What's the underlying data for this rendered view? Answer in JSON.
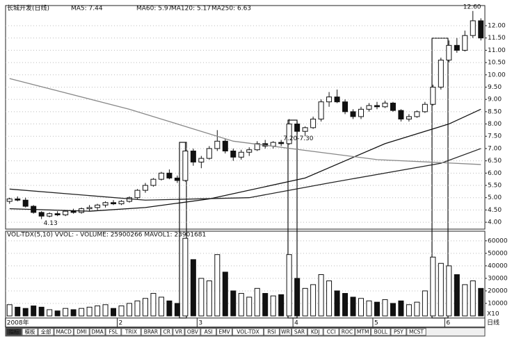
{
  "header": {
    "title": "长城开发(日线)",
    "ma_labels": [
      "MA5: 7.44",
      "MA60: 5.97",
      "MA120: 5.17",
      "MA250: 6.63"
    ]
  },
  "chart_data": [
    {
      "type": "candlestick",
      "categories": [
        "2008年",
        null,
        null,
        null,
        null,
        null,
        null,
        null,
        null,
        null,
        null,
        null,
        null,
        null,
        "2",
        null,
        null,
        null,
        null,
        null,
        null,
        null,
        null,
        null,
        "3",
        null,
        null,
        null,
        null,
        null,
        null,
        null,
        null,
        null,
        null,
        null,
        "4",
        null,
        null,
        null,
        null,
        null,
        null,
        null,
        null,
        null,
        "5",
        null,
        null,
        null,
        null,
        null,
        null,
        null,
        null,
        "6",
        null,
        null,
        null,
        null
      ],
      "open": [
        4.85,
        4.95,
        4.9,
        4.65,
        4.4,
        4.25,
        4.35,
        4.3,
        4.45,
        4.4,
        4.55,
        4.6,
        4.7,
        4.8,
        4.75,
        4.85,
        5.0,
        5.3,
        5.5,
        5.75,
        6.0,
        5.8,
        5.7,
        6.9,
        6.45,
        6.6,
        7.0,
        7.3,
        6.9,
        6.65,
        6.85,
        6.95,
        7.2,
        7.1,
        7.25,
        7.2,
        8.0,
        7.7,
        7.85,
        8.2,
        8.9,
        9.1,
        8.9,
        8.5,
        8.3,
        8.6,
        8.75,
        8.7,
        8.85,
        8.55,
        8.2,
        8.3,
        8.5,
        8.8,
        9.5,
        10.6,
        11.2,
        11.0,
        11.6,
        12.2
      ],
      "high": [
        5.0,
        5.05,
        5.0,
        4.7,
        4.45,
        4.4,
        4.45,
        4.5,
        4.55,
        4.6,
        4.7,
        4.75,
        4.85,
        4.9,
        4.9,
        5.05,
        5.35,
        5.6,
        5.8,
        6.05,
        6.15,
        5.9,
        7.25,
        7.0,
        6.7,
        7.1,
        7.75,
        7.4,
        7.0,
        6.95,
        7.05,
        7.3,
        7.35,
        7.3,
        7.35,
        8.2,
        8.1,
        7.9,
        8.3,
        9.0,
        9.3,
        9.4,
        9.0,
        8.6,
        8.7,
        8.85,
        8.9,
        8.95,
        8.9,
        8.6,
        8.4,
        8.55,
        8.9,
        9.6,
        10.7,
        11.4,
        11.5,
        11.8,
        12.6,
        12.3
      ],
      "low": [
        4.75,
        4.85,
        4.6,
        4.35,
        4.13,
        4.2,
        4.25,
        4.25,
        4.35,
        4.35,
        4.45,
        4.5,
        4.6,
        4.7,
        4.7,
        4.8,
        4.95,
        5.2,
        5.45,
        5.7,
        5.75,
        5.6,
        5.65,
        6.3,
        6.2,
        6.55,
        6.9,
        6.8,
        6.5,
        6.55,
        6.7,
        6.9,
        7.0,
        7.0,
        7.1,
        7.15,
        7.6,
        7.5,
        7.8,
        8.1,
        8.7,
        8.85,
        8.4,
        8.2,
        8.2,
        8.5,
        8.6,
        8.65,
        8.5,
        8.1,
        8.1,
        8.25,
        8.45,
        8.75,
        9.4,
        10.5,
        10.9,
        10.95,
        11.5,
        11.4
      ],
      "close": [
        4.95,
        4.9,
        4.65,
        4.4,
        4.25,
        4.35,
        4.3,
        4.45,
        4.4,
        4.55,
        4.6,
        4.7,
        4.8,
        4.75,
        4.85,
        5.0,
        5.3,
        5.5,
        5.75,
        6.0,
        5.8,
        5.7,
        6.9,
        6.45,
        6.6,
        7.0,
        7.3,
        6.9,
        6.65,
        6.85,
        6.95,
        7.2,
        7.1,
        7.25,
        7.2,
        8.0,
        7.7,
        7.85,
        8.2,
        8.9,
        9.1,
        8.9,
        8.5,
        8.3,
        8.6,
        8.75,
        8.7,
        8.85,
        8.55,
        8.2,
        8.3,
        8.5,
        8.8,
        9.5,
        10.6,
        11.2,
        11.0,
        11.6,
        12.2,
        11.5
      ],
      "up_color": "#ffffff",
      "down_color": "#111111",
      "series": [
        {
          "name": "MA60",
          "color": "#111111",
          "x": [
            0,
            10,
            17,
            25,
            37,
            47,
            55,
            59
          ],
          "values": [
            4.55,
            4.45,
            4.6,
            4.95,
            5.8,
            7.2,
            8.0,
            8.6
          ]
        },
        {
          "name": "MA120",
          "color": "#222222",
          "x": [
            0,
            17,
            30,
            40,
            54,
            59
          ],
          "values": [
            5.35,
            4.9,
            5.0,
            5.6,
            6.4,
            7.0
          ]
        },
        {
          "name": "MA250",
          "color": "#888888",
          "x": [
            0,
            15,
            28,
            46,
            59
          ],
          "values": [
            9.85,
            8.6,
            7.3,
            6.55,
            6.35
          ]
        }
      ],
      "annotations": [
        {
          "text": "4.13",
          "index": 4
        },
        {
          "text": "12.60",
          "index": 58
        },
        {
          "text": "7.20-7.30",
          "index": 34
        }
      ],
      "ylim": [
        3.72,
        12.82
      ],
      "yticks": [
        {
          "value": 4,
          "label": "4.00"
        },
        {
          "value": 4.5,
          "label": "4.50"
        },
        {
          "value": 5,
          "label": "5.00"
        },
        {
          "value": 5.5,
          "label": "5.50"
        },
        {
          "value": 6,
          "label": "6.00"
        },
        {
          "value": 6.5,
          "label": "6.50"
        },
        {
          "value": 7,
          "label": "7.00"
        },
        {
          "value": 7.5,
          "label": "7.50"
        },
        {
          "value": 8,
          "label": "8.00"
        },
        {
          "value": 8.5,
          "label": "8.50"
        },
        {
          "value": 9,
          "label": "9.00"
        },
        {
          "value": 9.5,
          "label": "9.50"
        },
        {
          "value": 10,
          "label": "10.00"
        },
        {
          "value": 10.5,
          "label": "10.50"
        },
        {
          "value": 11,
          "label": "11.00"
        },
        {
          "value": 11.5,
          "label": "11.50"
        },
        {
          "value": 12,
          "label": "12.00"
        }
      ],
      "grid": true
    },
    {
      "type": "bar",
      "title": "VOL-TDX(5,10)  VVOL: -  VOLUME: 25900266  MAVOL1: 23901681",
      "values": [
        9000,
        7000,
        6000,
        8000,
        7000,
        5000,
        4000,
        6000,
        5000,
        6000,
        7000,
        8000,
        9000,
        6000,
        8000,
        10000,
        12000,
        14000,
        18000,
        15000,
        12000,
        10000,
        62000,
        45000,
        30000,
        28000,
        49000,
        35000,
        20000,
        18000,
        15000,
        22000,
        18000,
        16000,
        17000,
        49000,
        30000,
        22000,
        25000,
        33000,
        28000,
        20000,
        18000,
        15000,
        14000,
        12000,
        11000,
        13000,
        10000,
        12000,
        9000,
        11000,
        20000,
        47000,
        42000,
        40000,
        33000,
        25000,
        28000,
        22000
      ],
      "ylim": [
        0,
        66000
      ],
      "yticks": [
        10000,
        20000,
        30000,
        40000,
        50000,
        60000
      ],
      "grid": true
    }
  ],
  "footer": {
    "unit": "X10",
    "period": "日线",
    "tabs": [
      "指标",
      "模板",
      "全部",
      "MACD",
      "DMI",
      "DMA",
      "FSL",
      "TRIX",
      "BRAR",
      "CR",
      "VR",
      "OBV",
      "ASI",
      "EMV",
      "VOL-TDX",
      "RSI",
      "WR",
      "SAR",
      "KDJ",
      "CCI",
      "ROC",
      "MTM",
      "BOLL",
      "PSY",
      "MCST"
    ]
  }
}
